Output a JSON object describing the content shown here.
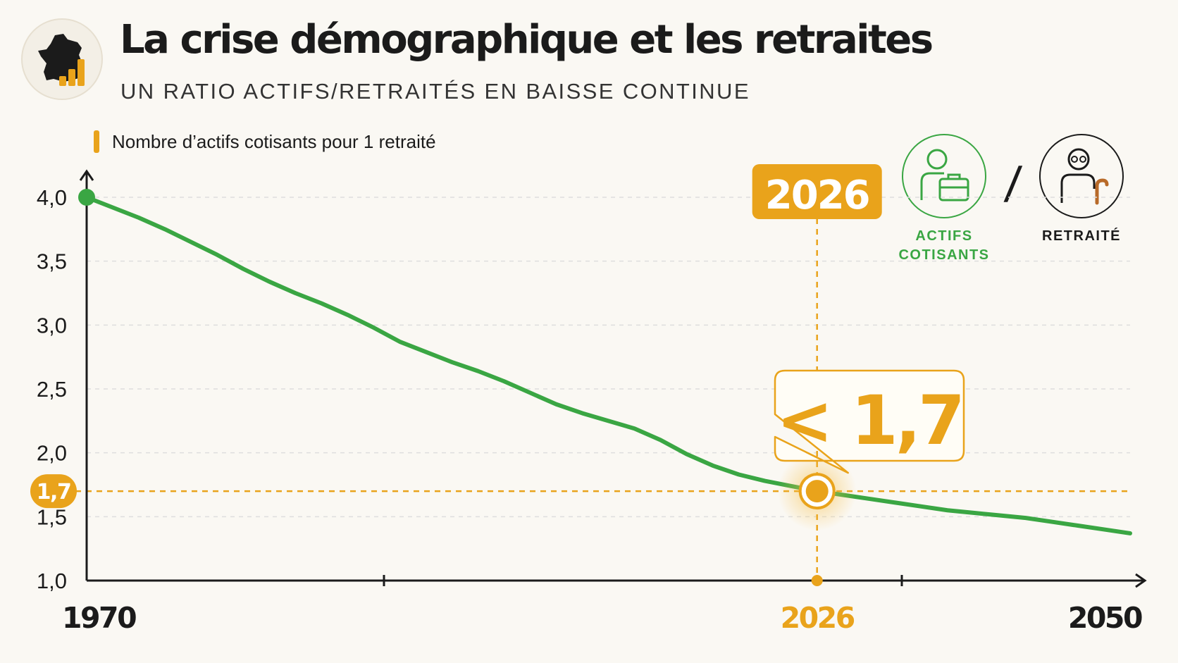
{
  "header": {
    "title": "La crise démographique et les retraites",
    "subtitle": "UN RATIO ACTIFS/RETRAITÉS EN BAISSE CONTINUE",
    "logo_icon": "france-map-bar-chart-icon"
  },
  "legend": {
    "label": "Nombre d’actifs cotisants pour 1 retraité"
  },
  "ratio_icons": {
    "actifs": {
      "icon": "worker-briefcase-icon",
      "label_line1": "ACTIFS",
      "label_line2": "COTISANTS"
    },
    "separator": "/",
    "retraite": {
      "icon": "elderly-person-cane-icon",
      "label": "RETRAITÉ"
    }
  },
  "colors": {
    "line": "#3aa643",
    "highlight": "#e9a31b",
    "axis": "#1b1b1b",
    "grid": "#dedede",
    "background": "#faf8f3"
  },
  "chart_data": {
    "type": "line",
    "title": "La crise démographique et les retraites",
    "subtitle": "UN RATIO ACTIFS/RETRAITÉS EN BAISSE CONTINUE",
    "xlabel": "",
    "ylabel": "",
    "xlim": [
      1970,
      2050
    ],
    "ylim": [
      1.0,
      4.0
    ],
    "y_ticks": [
      "1,0",
      "1,5",
      "2,0",
      "2,5",
      "3,0",
      "3,5",
      "4,0"
    ],
    "y_tick_values": [
      1.0,
      1.5,
      2.0,
      2.5,
      3.0,
      3.5,
      4.0
    ],
    "x_tick_labels": [
      "1970",
      "2026",
      "2050"
    ],
    "x_tick_values": [
      1970,
      2026,
      2050
    ],
    "grid": true,
    "series": [
      {
        "name": "Nombre d’actifs cotisants pour 1 retraité",
        "x": [
          1970,
          1972,
          1974,
          1976,
          1978,
          1980,
          1982,
          1984,
          1986,
          1988,
          1990,
          1992,
          1994,
          1996,
          1998,
          2000,
          2002,
          2004,
          2006,
          2008,
          2010,
          2012,
          2014,
          2016,
          2018,
          2020,
          2022,
          2024,
          2026,
          2028,
          2030,
          2032,
          2034,
          2036,
          2038,
          2040,
          2042,
          2044,
          2046,
          2048,
          2050
        ],
        "y": [
          4.0,
          3.92,
          3.84,
          3.75,
          3.65,
          3.55,
          3.44,
          3.34,
          3.25,
          3.17,
          3.08,
          2.98,
          2.87,
          2.79,
          2.71,
          2.64,
          2.56,
          2.47,
          2.38,
          2.31,
          2.25,
          2.19,
          2.1,
          1.99,
          1.9,
          1.83,
          1.78,
          1.74,
          1.7,
          1.67,
          1.64,
          1.61,
          1.58,
          1.55,
          1.53,
          1.51,
          1.49,
          1.46,
          1.43,
          1.4,
          1.37
        ]
      }
    ],
    "highlight": {
      "year": 2026,
      "value": 1.7,
      "year_label": "2026",
      "value_label": "1,7",
      "callout": "< 1,7"
    }
  }
}
